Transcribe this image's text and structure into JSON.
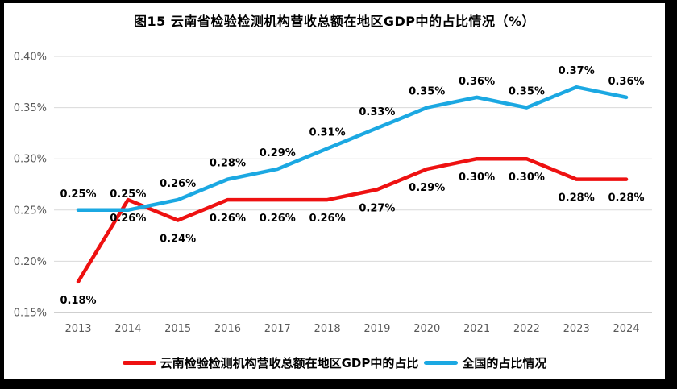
{
  "chart_data": {
    "type": "line",
    "title": "图15 云南省检验检测机构营收总额在地区GDP中的占比情况（%）",
    "categories": [
      "2013",
      "2014",
      "2015",
      "2016",
      "2017",
      "2018",
      "2019",
      "2020",
      "2021",
      "2022",
      "2023",
      "2024"
    ],
    "series": [
      {
        "name": "云南检验检测机构营收总额在地区GDP中的占比",
        "color": "#ee1111",
        "values": [
          0.18,
          0.26,
          0.24,
          0.26,
          0.26,
          0.26,
          0.27,
          0.29,
          0.3,
          0.3,
          0.28,
          0.28
        ],
        "data_label_position": "below"
      },
      {
        "name": "全国的占比情况",
        "color": "#1ba8e2",
        "values": [
          0.25,
          0.25,
          0.26,
          0.28,
          0.29,
          0.31,
          0.33,
          0.35,
          0.36,
          0.35,
          0.37,
          0.36
        ],
        "data_label_position": "above"
      }
    ],
    "ylim": [
      0.15,
      0.4
    ],
    "yticks": [
      {
        "label": "0.15%",
        "value": 0.15
      },
      {
        "label": "0.20%",
        "value": 0.2
      },
      {
        "label": "0.25%",
        "value": 0.25
      },
      {
        "label": "0.30%",
        "value": 0.3
      },
      {
        "label": "0.35%",
        "value": 0.35
      },
      {
        "label": "0.40%",
        "value": 0.4
      }
    ],
    "grid": true,
    "legend_position": "bottom",
    "value_suffix": "%"
  },
  "colors": {
    "background": "#ffffff",
    "frame": "#000000",
    "gridline": "#d9d9d9",
    "axis_line": "#bfbfbf",
    "axis_text": "#595959",
    "data_label_text": "#000000"
  }
}
